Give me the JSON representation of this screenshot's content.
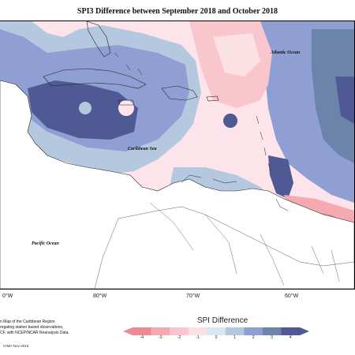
{
  "title": "SPI3 Difference between September 2018 and October 2018",
  "map": {
    "atlantic_label": "Atlantic Ocean",
    "caribbean_label": "Caribbean Sea",
    "pacific_label": "Pacific Ocean"
  },
  "longitude_ticks": [
    "0°W",
    "80°W",
    "70°W",
    "60°W"
  ],
  "legend": {
    "title": "SPI Difference",
    "ticks": [
      "-4",
      "-3",
      "-2",
      "-1",
      "0",
      "1",
      "2",
      "3",
      "4"
    ],
    "colors": [
      "#ef8a94",
      "#f5aab2",
      "#f8c6cc",
      "#fbe0e4",
      "#d8e8ef",
      "#b4c8e0",
      "#8f9fd3",
      "#6d84aa",
      "#4f5a94"
    ]
  },
  "notes": {
    "line1": "n Map of the Caribbean Region",
    "line2": "regating station based observations,",
    "line3": "CF, with NCEP/NCAR Reanalysis Data.",
    "credit": "CIMH Nov-2018"
  }
}
